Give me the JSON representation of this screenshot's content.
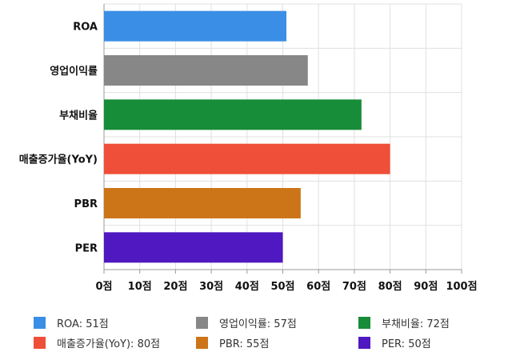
{
  "chart_data": {
    "type": "bar",
    "orientation": "horizontal",
    "categories": [
      "ROA",
      "영업이익률",
      "부채비율",
      "매출증가율(YoY)",
      "PBR",
      "PER"
    ],
    "values": [
      51,
      57,
      72,
      80,
      55,
      50
    ],
    "colors": [
      "#3a8ee6",
      "#878787",
      "#178c39",
      "#ef4e38",
      "#cc7418",
      "#4f18c0"
    ],
    "xlim": [
      0,
      100
    ],
    "x_ticks": [
      "0점",
      "10점",
      "20점",
      "30점",
      "40점",
      "50점",
      "60점",
      "70점",
      "80점",
      "90점",
      "100점"
    ],
    "grid": true,
    "legend_position": "bottom",
    "legend": [
      "ROA: 51점",
      "영업이익률: 57점",
      "부채비율: 72점",
      "매출증가율(YoY): 80점",
      "PBR: 55점",
      "PER: 50점"
    ]
  }
}
